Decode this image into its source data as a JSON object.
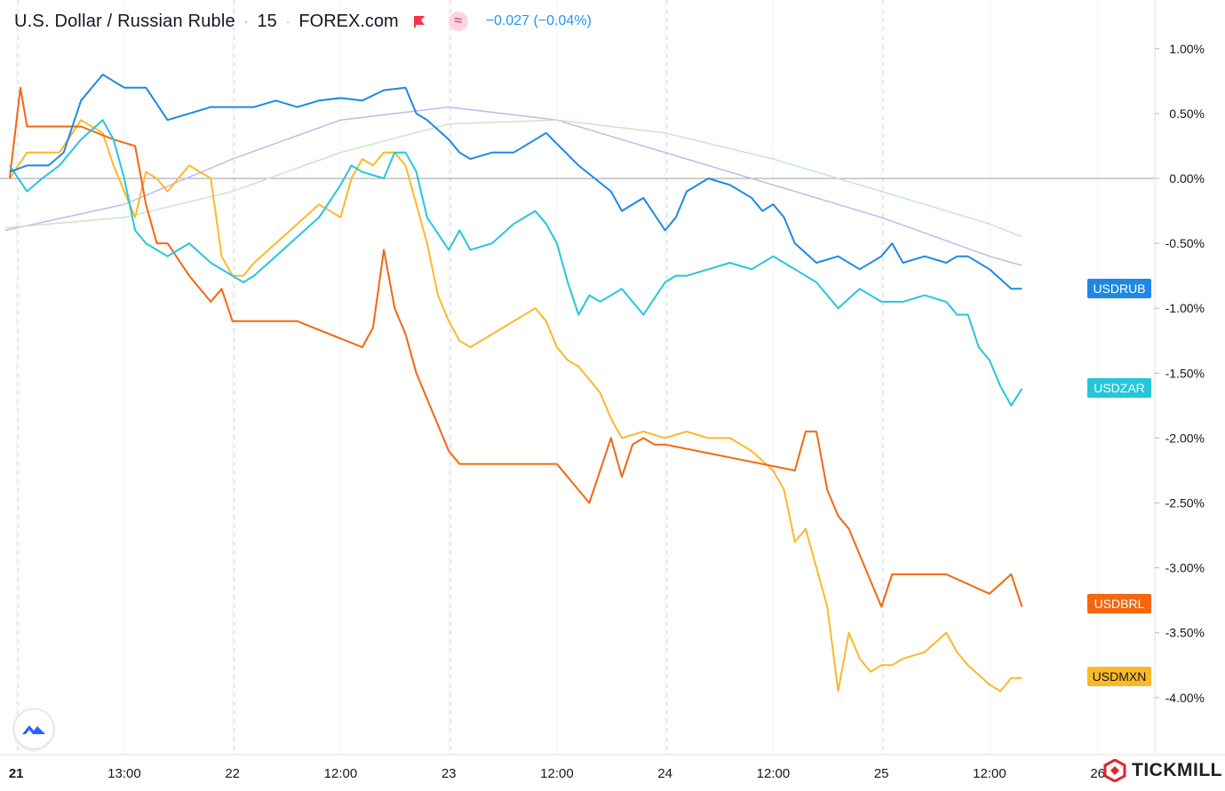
{
  "header": {
    "symbol_name": "U.S. Dollar / Russian Ruble",
    "interval": "15",
    "source": "FOREX.com",
    "change_text": "−0.027 (−0.04%)",
    "separator": "·"
  },
  "brand": {
    "name": "TICKMILL"
  },
  "icons": {
    "flag": "flag-icon",
    "compare": "wave-icon",
    "tv": "tradingview-logo-icon",
    "brand": "tickmill-logo-icon"
  },
  "colors": {
    "USDRUB": "#1e88e5",
    "USDZAR": "#26c6da",
    "USDBRL": "#f4670f",
    "USDMXN": "#fbb829",
    "ma_purple": "#c5b8ee",
    "ma_green": "#c8e6c9",
    "zero_line": "#9e9e9e",
    "grid": "#e0e3eb"
  },
  "chart_data": {
    "type": "line",
    "y_unit": "%",
    "ylim": [
      -4.3,
      1.25
    ],
    "y_ticks": [
      1.0,
      0.5,
      0.0,
      -0.5,
      -1.0,
      -1.5,
      -2.0,
      -2.5,
      -3.0,
      -3.5,
      -4.0
    ],
    "y_tick_labels": [
      "1.00%",
      "0.50%",
      "0.00%",
      "-0.50%",
      "-1.00%",
      "-1.50%",
      "-2.00%",
      "-2.50%",
      "-3.00%",
      "-3.50%",
      "-4.00%"
    ],
    "x_ticks": [
      0,
      0.5,
      1,
      1.5,
      2,
      2.5,
      3,
      3.5,
      4,
      4.5,
      5
    ],
    "x_tick_labels": [
      "21",
      "13:00",
      "22",
      "12:00",
      "23",
      "12:00",
      "24",
      "12:00",
      "25",
      "12:00",
      "26"
    ],
    "xlim": [
      -0.05,
      5.1
    ],
    "day_boundaries": [
      0.0,
      1.0,
      2.0,
      3.0,
      4.0
    ],
    "series": [
      {
        "name": "USDRUB",
        "color": "#1e88e5",
        "last": -0.85,
        "x": [
          -0.03,
          0.05,
          0.15,
          0.22,
          0.3,
          0.4,
          0.5,
          0.6,
          0.7,
          0.8,
          0.9,
          1.0,
          1.1,
          1.2,
          1.3,
          1.4,
          1.5,
          1.6,
          1.7,
          1.8,
          1.85,
          1.9,
          2.0,
          2.05,
          2.1,
          2.2,
          2.3,
          2.45,
          2.6,
          2.75,
          2.8,
          2.9,
          3.0,
          3.05,
          3.1,
          3.2,
          3.3,
          3.4,
          3.45,
          3.5,
          3.55,
          3.6,
          3.7,
          3.8,
          3.9,
          4.0,
          4.05,
          4.1,
          4.2,
          4.3,
          4.35,
          4.4,
          4.5,
          4.6,
          4.65
        ],
        "y": [
          0.05,
          0.1,
          0.1,
          0.2,
          0.6,
          0.8,
          0.7,
          0.7,
          0.45,
          0.5,
          0.55,
          0.55,
          0.55,
          0.6,
          0.55,
          0.6,
          0.62,
          0.6,
          0.68,
          0.7,
          0.5,
          0.45,
          0.3,
          0.2,
          0.15,
          0.2,
          0.2,
          0.35,
          0.1,
          -0.1,
          -0.25,
          -0.15,
          -0.4,
          -0.3,
          -0.1,
          0.0,
          -0.05,
          -0.15,
          -0.25,
          -0.2,
          -0.3,
          -0.5,
          -0.65,
          -0.6,
          -0.7,
          -0.6,
          -0.5,
          -0.65,
          -0.6,
          -0.65,
          -0.6,
          -0.6,
          -0.7,
          -0.85,
          -0.85
        ]
      },
      {
        "name": "USDZAR",
        "color": "#26c6da",
        "last": -1.62,
        "x": [
          -0.03,
          0.05,
          0.12,
          0.2,
          0.3,
          0.4,
          0.45,
          0.5,
          0.55,
          0.6,
          0.7,
          0.8,
          0.9,
          1.0,
          1.05,
          1.1,
          1.2,
          1.3,
          1.4,
          1.5,
          1.55,
          1.6,
          1.7,
          1.75,
          1.8,
          1.85,
          1.9,
          2.0,
          2.05,
          2.1,
          2.2,
          2.3,
          2.4,
          2.45,
          2.5,
          2.55,
          2.6,
          2.65,
          2.7,
          2.8,
          2.9,
          3.0,
          3.05,
          3.1,
          3.2,
          3.3,
          3.4,
          3.5,
          3.6,
          3.7,
          3.8,
          3.9,
          4.0,
          4.1,
          4.2,
          4.3,
          4.35,
          4.4,
          4.45,
          4.5,
          4.55,
          4.6,
          4.65
        ],
        "y": [
          0.1,
          -0.1,
          0.0,
          0.1,
          0.3,
          0.45,
          0.3,
          0.0,
          -0.4,
          -0.5,
          -0.6,
          -0.5,
          -0.65,
          -0.75,
          -0.8,
          -0.75,
          -0.6,
          -0.45,
          -0.3,
          -0.05,
          0.1,
          0.05,
          0.0,
          0.2,
          0.2,
          0.05,
          -0.3,
          -0.55,
          -0.4,
          -0.55,
          -0.5,
          -0.35,
          -0.25,
          -0.35,
          -0.5,
          -0.8,
          -1.05,
          -0.9,
          -0.95,
          -0.85,
          -1.05,
          -0.8,
          -0.75,
          -0.75,
          -0.7,
          -0.65,
          -0.7,
          -0.6,
          -0.7,
          -0.8,
          -1.0,
          -0.85,
          -0.95,
          -0.95,
          -0.9,
          -0.95,
          -1.05,
          -1.05,
          -1.3,
          -1.4,
          -1.6,
          -1.75,
          -1.62
        ]
      },
      {
        "name": "USDBRL",
        "color": "#f4670f",
        "last": -3.3,
        "x": [
          -0.03,
          0.02,
          0.05,
          0.1,
          0.3,
          0.45,
          0.55,
          0.6,
          0.65,
          0.7,
          0.8,
          0.9,
          0.95,
          1.0,
          1.05,
          1.1,
          1.3,
          1.6,
          1.65,
          1.7,
          1.75,
          1.8,
          1.85,
          1.9,
          1.95,
          2.0,
          2.05,
          2.1,
          2.5,
          2.65,
          2.75,
          2.8,
          2.85,
          2.9,
          2.95,
          3.0,
          3.6,
          3.65,
          3.7,
          3.75,
          3.8,
          3.85,
          3.9,
          3.95,
          4.0,
          4.05,
          4.1,
          4.2,
          4.3,
          4.5,
          4.6,
          4.65
        ],
        "y": [
          0.0,
          0.7,
          0.4,
          0.4,
          0.4,
          0.3,
          0.25,
          -0.2,
          -0.5,
          -0.5,
          -0.75,
          -0.95,
          -0.85,
          -1.1,
          -1.1,
          -1.1,
          -1.1,
          -1.3,
          -1.15,
          -0.55,
          -1.0,
          -1.2,
          -1.5,
          -1.7,
          -1.9,
          -2.1,
          -2.2,
          -2.2,
          -2.2,
          -2.5,
          -2.0,
          -2.3,
          -2.05,
          -2.0,
          -2.05,
          -2.05,
          -2.25,
          -1.95,
          -1.95,
          -2.4,
          -2.6,
          -2.7,
          -2.9,
          -3.1,
          -3.3,
          -3.05,
          -3.05,
          -3.05,
          -3.05,
          -3.2,
          -3.05,
          -3.3
        ]
      },
      {
        "name": "USDMXN",
        "color": "#fbb829",
        "last": -3.85,
        "x": [
          -0.03,
          0.05,
          0.1,
          0.2,
          0.3,
          0.4,
          0.45,
          0.5,
          0.55,
          0.6,
          0.65,
          0.7,
          0.8,
          0.9,
          0.95,
          1.0,
          1.05,
          1.1,
          1.2,
          1.3,
          1.4,
          1.5,
          1.55,
          1.6,
          1.65,
          1.7,
          1.75,
          1.8,
          1.85,
          1.9,
          1.95,
          2.0,
          2.05,
          2.1,
          2.2,
          2.3,
          2.4,
          2.45,
          2.5,
          2.55,
          2.6,
          2.7,
          2.75,
          2.8,
          2.9,
          3.0,
          3.1,
          3.2,
          3.3,
          3.4,
          3.5,
          3.55,
          3.6,
          3.65,
          3.7,
          3.75,
          3.8,
          3.85,
          3.9,
          3.95,
          4.0,
          4.05,
          4.1,
          4.2,
          4.3,
          4.35,
          4.4,
          4.5,
          4.55,
          4.6,
          4.65
        ],
        "y": [
          0.0,
          0.2,
          0.2,
          0.2,
          0.45,
          0.35,
          0.1,
          -0.1,
          -0.3,
          0.05,
          0.0,
          -0.1,
          0.1,
          0.0,
          -0.6,
          -0.75,
          -0.75,
          -0.65,
          -0.5,
          -0.35,
          -0.2,
          -0.3,
          0.0,
          0.15,
          0.1,
          0.2,
          0.2,
          0.1,
          -0.2,
          -0.5,
          -0.9,
          -1.1,
          -1.25,
          -1.3,
          -1.2,
          -1.1,
          -1.0,
          -1.1,
          -1.3,
          -1.4,
          -1.45,
          -1.65,
          -1.85,
          -2.0,
          -1.95,
          -2.0,
          -1.95,
          -2.0,
          -2.0,
          -2.1,
          -2.25,
          -2.4,
          -2.8,
          -2.7,
          -3.0,
          -3.3,
          -3.95,
          -3.5,
          -3.7,
          -3.8,
          -3.75,
          -3.75,
          -3.7,
          -3.65,
          -3.5,
          -3.65,
          -3.75,
          -3.9,
          -3.95,
          -3.85,
          -3.85
        ]
      }
    ],
    "moving_averages": [
      {
        "color": "#c5b8ee",
        "x": [
          -0.05,
          0.5,
          1.0,
          1.5,
          2.0,
          2.5,
          3.0,
          3.5,
          4.0,
          4.5,
          4.65
        ],
        "y": [
          -0.4,
          -0.2,
          0.15,
          0.45,
          0.55,
          0.45,
          0.2,
          -0.05,
          -0.3,
          -0.6,
          -0.67
        ]
      },
      {
        "color": "#c8e6c9",
        "x": [
          -0.05,
          0.5,
          1.0,
          1.5,
          2.0,
          2.5,
          3.0,
          3.5,
          4.0,
          4.5,
          4.65
        ],
        "y": [
          -0.38,
          -0.3,
          -0.1,
          0.2,
          0.42,
          0.45,
          0.35,
          0.15,
          -0.1,
          -0.35,
          -0.45
        ]
      }
    ],
    "legend_placement": "right axis tags"
  }
}
